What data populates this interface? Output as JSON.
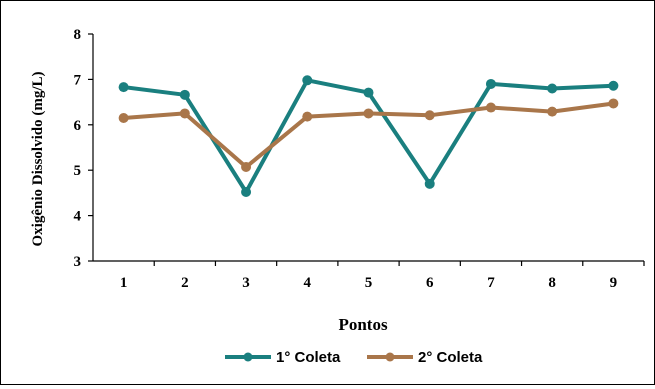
{
  "chart_data": {
    "type": "line",
    "title": "",
    "xlabel": "Pontos",
    "ylabel": "Oxigênio Dissolvido (mg/L)",
    "categories": [
      "1",
      "2",
      "3",
      "4",
      "5",
      "6",
      "7",
      "8",
      "9"
    ],
    "ylim": [
      3,
      8
    ],
    "yticks": [
      "3",
      "4",
      "5",
      "6",
      "7",
      "8"
    ],
    "grid": false,
    "legend_position": "bottom",
    "series": [
      {
        "name": "1° Coleta",
        "color": "#1a7f7f",
        "values": [
          6.83,
          6.66,
          4.52,
          6.98,
          6.71,
          4.7,
          6.9,
          6.8,
          6.86
        ]
      },
      {
        "name": "2° Coleta",
        "color": "#a9764a",
        "values": [
          6.15,
          6.25,
          5.07,
          6.18,
          6.25,
          6.21,
          6.38,
          6.29,
          6.47
        ]
      }
    ]
  }
}
